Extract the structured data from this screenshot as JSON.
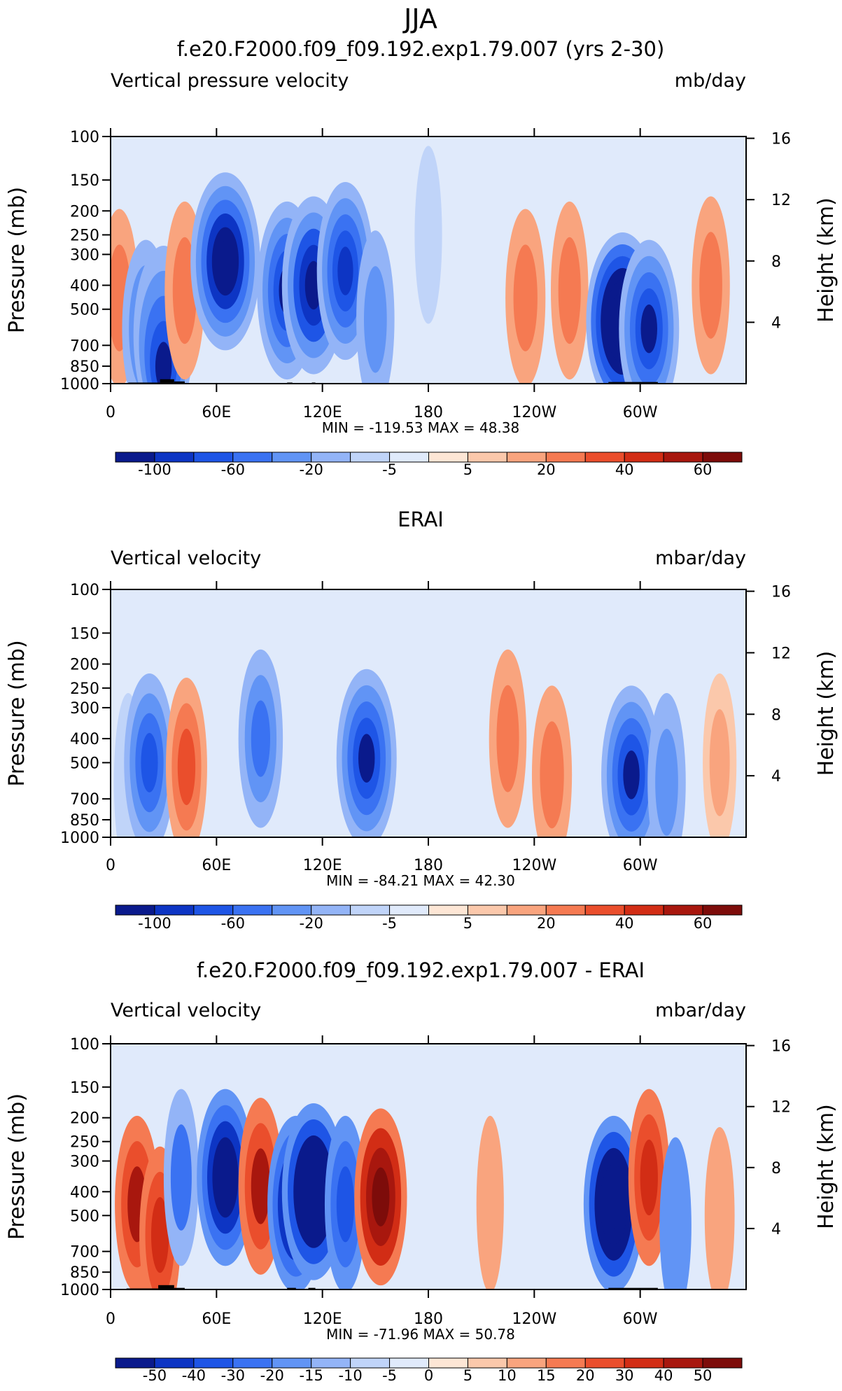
{
  "figure": {
    "title": "JJA"
  },
  "chart_data": [
    {
      "type": "heatmap",
      "title": "f.e20.F2000.f09_f09.192.exp1.79.007 (yrs 2-30)",
      "left_label": "Vertical pressure velocity",
      "right_label": "mb/day",
      "ylabel": "Pressure (mb)",
      "ylabel_right": "Height (km)",
      "y_scale": "log",
      "y_ticks": [
        "100",
        "150",
        "200",
        "250",
        "300",
        "400",
        "500",
        "700",
        "850",
        "1000"
      ],
      "y2_ticks": [
        "16",
        "12",
        "8",
        "4"
      ],
      "x_ticks": [
        "0",
        "60E",
        "120E",
        "180",
        "120W",
        "60W"
      ],
      "stats": {
        "min_label": "MIN =",
        "min": "-119.53",
        "max_label": "MAX =",
        "max": "48.38"
      },
      "colorbar_labels": [
        "-100",
        "-60",
        "-20",
        "-5",
        "5",
        "20",
        "40",
        "60"
      ],
      "colorbar_colors": [
        "#0a1a8c",
        "#0d35c4",
        "#1e55e6",
        "#3a72f2",
        "#6194f5",
        "#93b4f7",
        "#c0d4f9",
        "#e0eafb",
        "#fde6d5",
        "#fbc8ab",
        "#f9a47e",
        "#f57a52",
        "#ea4e2c",
        "#d22d15",
        "#a8170e",
        "#7d0c0a"
      ],
      "data": [
        {
          "lon": 5,
          "p": 450,
          "v": 25
        },
        {
          "lon": 20,
          "p": 600,
          "v": -40
        },
        {
          "lon": 30,
          "p": 850,
          "v": -60
        },
        {
          "lon": 42,
          "p": 420,
          "v": 28
        },
        {
          "lon": 65,
          "p": 320,
          "v": -75
        },
        {
          "lon": 100,
          "p": 420,
          "v": -60
        },
        {
          "lon": 115,
          "p": 400,
          "v": -65
        },
        {
          "lon": 133,
          "p": 350,
          "v": -55
        },
        {
          "lon": 150,
          "p": 550,
          "v": -25
        },
        {
          "lon": 180,
          "p": 250,
          "v": -8
        },
        {
          "lon": 235,
          "p": 450,
          "v": 28
        },
        {
          "lon": 260,
          "p": 420,
          "v": 24
        },
        {
          "lon": 290,
          "p": 560,
          "v": -110
        },
        {
          "lon": 305,
          "p": 600,
          "v": -60
        },
        {
          "lon": 340,
          "p": 400,
          "v": 25
        }
      ]
    },
    {
      "type": "heatmap",
      "title": "ERAI",
      "left_label": "Vertical velocity",
      "right_label": "mbar/day",
      "ylabel": "Pressure (mb)",
      "ylabel_right": "Height (km)",
      "y_scale": "log",
      "y_ticks": [
        "100",
        "150",
        "200",
        "250",
        "300",
        "400",
        "500",
        "700",
        "850",
        "1000"
      ],
      "y2_ticks": [
        "16",
        "12",
        "8",
        "4"
      ],
      "x_ticks": [
        "0",
        "60E",
        "120E",
        "180",
        "120W",
        "60W"
      ],
      "stats": {
        "min_label": "MIN =",
        "min": "-84.21",
        "max_label": "MAX =",
        "max": "42.30"
      },
      "colorbar_labels": [
        "-100",
        "-60",
        "-20",
        "-5",
        "5",
        "20",
        "40",
        "60"
      ],
      "colorbar_colors": [
        "#0a1a8c",
        "#0d35c4",
        "#1e55e6",
        "#3a72f2",
        "#6194f5",
        "#93b4f7",
        "#c0d4f9",
        "#e0eafb",
        "#fde6d5",
        "#fbc8ab",
        "#f9a47e",
        "#f57a52",
        "#ea4e2c",
        "#d22d15",
        "#a8170e",
        "#7d0c0a"
      ],
      "data": [
        {
          "lon": 10,
          "p": 600,
          "v": -10
        },
        {
          "lon": 22,
          "p": 500,
          "v": -45
        },
        {
          "lon": 43,
          "p": 520,
          "v": 30
        },
        {
          "lon": 85,
          "p": 400,
          "v": -35
        },
        {
          "lon": 145,
          "p": 480,
          "v": -60
        },
        {
          "lon": 225,
          "p": 400,
          "v": 24
        },
        {
          "lon": 250,
          "p": 560,
          "v": 28
        },
        {
          "lon": 295,
          "p": 560,
          "v": -60
        },
        {
          "lon": 315,
          "p": 600,
          "v": -25
        },
        {
          "lon": 345,
          "p": 500,
          "v": 18
        }
      ]
    },
    {
      "type": "heatmap",
      "title": "f.e20.F2000.f09_f09.192.exp1.79.007 - ERAI",
      "left_label": "Vertical velocity",
      "right_label": "mbar/day",
      "ylabel": "Pressure (mb)",
      "ylabel_right": "Height (km)",
      "y_scale": "log",
      "y_ticks": [
        "100",
        "150",
        "200",
        "250",
        "300",
        "400",
        "500",
        "700",
        "850",
        "1000"
      ],
      "y2_ticks": [
        "16",
        "12",
        "8",
        "4"
      ],
      "x_ticks": [
        "0",
        "60E",
        "120E",
        "180",
        "120W",
        "60W"
      ],
      "stats": {
        "min_label": "MIN =",
        "min": "-71.96",
        "max_label": "MAX =",
        "max": "50.78"
      },
      "colorbar_labels": [
        "-50",
        "-40",
        "-30",
        "-20",
        "-15",
        "-10",
        "-5",
        "0",
        "5",
        "10",
        "15",
        "20",
        "30",
        "40",
        "50"
      ],
      "colorbar_colors": [
        "#0a1a8c",
        "#0d35c4",
        "#1e55e6",
        "#3a72f2",
        "#6194f5",
        "#93b4f7",
        "#c0d4f9",
        "#e0eafb",
        "#fde6d5",
        "#fbc8ab",
        "#f9a47e",
        "#f57a52",
        "#ea4e2c",
        "#d22d15",
        "#a8170e",
        "#7d0c0a"
      ],
      "data": [
        {
          "lon": 15,
          "p": 450,
          "v": 35
        },
        {
          "lon": 28,
          "p": 600,
          "v": 30
        },
        {
          "lon": 40,
          "p": 350,
          "v": -20
        },
        {
          "lon": 65,
          "p": 350,
          "v": -55
        },
        {
          "lon": 85,
          "p": 380,
          "v": 35
        },
        {
          "lon": 105,
          "p": 450,
          "v": -55
        },
        {
          "lon": 115,
          "p": 400,
          "v": -65
        },
        {
          "lon": 133,
          "p": 450,
          "v": -30
        },
        {
          "lon": 153,
          "p": 420,
          "v": 48
        },
        {
          "lon": 215,
          "p": 450,
          "v": 8
        },
        {
          "lon": 285,
          "p": 450,
          "v": -60
        },
        {
          "lon": 305,
          "p": 350,
          "v": 30
        },
        {
          "lon": 320,
          "p": 550,
          "v": -15
        },
        {
          "lon": 345,
          "p": 500,
          "v": 12
        }
      ]
    }
  ]
}
